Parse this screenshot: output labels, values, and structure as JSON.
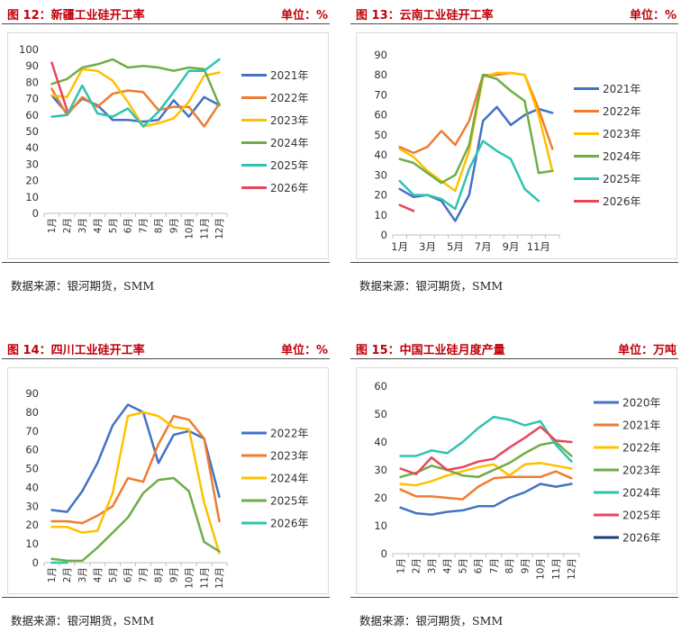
{
  "source_text": "数据来源：银河期货，SMM",
  "chart_data": [
    {
      "type": "line",
      "title": "图 12：新疆工业硅开工率",
      "unit": "单位：%",
      "categories": [
        "1月",
        "2月",
        "3月",
        "4月",
        "5月",
        "6月",
        "7月",
        "8月",
        "9月",
        "10月",
        "11月",
        "12月"
      ],
      "ylim": [
        0,
        100
      ],
      "yticks": [
        0,
        10,
        20,
        30,
        40,
        50,
        60,
        70,
        80,
        90,
        100
      ],
      "xtick_rotate": true,
      "legend_position": "right",
      "series": [
        {
          "name": "2021年",
          "color": "#4472c4",
          "values": [
            72,
            61,
            70,
            66,
            57,
            57,
            56,
            57,
            69,
            59,
            71,
            66
          ]
        },
        {
          "name": "2022年",
          "color": "#ed7d31",
          "values": [
            76,
            60,
            71,
            65,
            73,
            75,
            74,
            63,
            65,
            65,
            53,
            67
          ]
        },
        {
          "name": "2023年",
          "color": "#ffc000",
          "values": [
            72,
            71,
            88,
            87,
            81,
            68,
            53,
            55,
            58,
            68,
            84,
            86
          ]
        },
        {
          "name": "2024年",
          "color": "#70ad47",
          "values": [
            79,
            82,
            89,
            91,
            94,
            89,
            90,
            89,
            87,
            89,
            88,
            66
          ]
        },
        {
          "name": "2025年",
          "color": "#2ec4b0",
          "values": [
            59,
            60,
            78,
            61,
            59,
            64,
            53,
            62,
            74,
            87,
            87,
            94
          ]
        },
        {
          "name": "2026年",
          "color": "#e8475b",
          "values": [
            92,
            63,
            null,
            null,
            null,
            null,
            null,
            null,
            null,
            null,
            null,
            null
          ]
        }
      ]
    },
    {
      "type": "line",
      "title": "图 13：云南工业硅开工率",
      "unit": "单位：%",
      "categories": [
        "1月",
        "2月",
        "3月",
        "4月",
        "5月",
        "6月",
        "7月",
        "8月",
        "9月",
        "10月",
        "11月",
        "12月"
      ],
      "xtick_labels": [
        "1月",
        "",
        "3月",
        "",
        "5月",
        "",
        "7月",
        "",
        "9月",
        "",
        "11月",
        ""
      ],
      "ylim": [
        0,
        90
      ],
      "yticks": [
        0,
        10,
        20,
        30,
        40,
        50,
        60,
        70,
        80,
        90
      ],
      "xtick_rotate": false,
      "legend_position": "right",
      "series": [
        {
          "name": "2021年",
          "color": "#4472c4",
          "values": [
            23,
            19,
            20,
            17,
            7,
            20,
            57,
            64,
            55,
            60,
            63,
            61
          ]
        },
        {
          "name": "2022年",
          "color": "#ed7d31",
          "values": [
            44,
            41,
            44,
            52,
            45,
            57,
            80,
            80,
            81,
            80,
            63,
            43
          ]
        },
        {
          "name": "2023年",
          "color": "#ffc000",
          "values": [
            43,
            39,
            32,
            27,
            22,
            42,
            79,
            81,
            81,
            80,
            60,
            32
          ]
        },
        {
          "name": "2024年",
          "color": "#70ad47",
          "values": [
            38,
            36,
            31,
            26,
            30,
            45,
            80,
            78,
            72,
            67,
            31,
            32
          ]
        },
        {
          "name": "2025年",
          "color": "#2ec4b0",
          "values": [
            27,
            20,
            20,
            18,
            13,
            33,
            47,
            42,
            38,
            23,
            17,
            null
          ]
        },
        {
          "name": "2026年",
          "color": "#e8475b",
          "values": [
            15,
            12,
            null,
            null,
            null,
            null,
            null,
            null,
            null,
            null,
            null,
            null
          ]
        }
      ]
    },
    {
      "type": "line",
      "title": "图 14：四川工业硅开工率",
      "unit": "单位：%",
      "categories": [
        "1月",
        "2月",
        "3月",
        "4月",
        "5月",
        "6月",
        "7月",
        "8月",
        "9月",
        "10月",
        "11月",
        "12月"
      ],
      "ylim": [
        0,
        90
      ],
      "yticks": [
        0,
        10,
        20,
        30,
        40,
        50,
        60,
        70,
        80,
        90
      ],
      "xtick_rotate": true,
      "legend_position": "right",
      "series": [
        {
          "name": "2022年",
          "color": "#4472c4",
          "values": [
            28,
            27,
            38,
            53,
            73,
            84,
            80,
            53,
            68,
            70,
            66,
            35
          ]
        },
        {
          "name": "2023年",
          "color": "#ed7d31",
          "values": [
            22,
            22,
            21,
            25,
            30,
            45,
            43,
            63,
            78,
            76,
            66,
            22
          ]
        },
        {
          "name": "2024年",
          "color": "#ffc000",
          "values": [
            19,
            19,
            16,
            17,
            37,
            78,
            80,
            78,
            72,
            71,
            32,
            5
          ]
        },
        {
          "name": "2025年",
          "color": "#70ad47",
          "values": [
            2,
            1,
            1,
            8,
            16,
            24,
            37,
            44,
            45,
            38,
            11,
            6
          ]
        },
        {
          "name": "2026年",
          "color": "#2ec4b0",
          "values": [
            0,
            0,
            null,
            null,
            null,
            null,
            null,
            null,
            null,
            null,
            null,
            null
          ]
        }
      ]
    },
    {
      "type": "line",
      "title": "图 15：中国工业硅月度产量",
      "unit": "单位：万吨",
      "categories": [
        "1月",
        "2月",
        "3月",
        "4月",
        "5月",
        "6月",
        "7月",
        "8月",
        "9月",
        "10月",
        "11月",
        "12月"
      ],
      "ylim": [
        0,
        60
      ],
      "yticks": [
        0,
        10,
        20,
        30,
        40,
        50,
        60
      ],
      "xtick_rotate": true,
      "legend_position": "right",
      "series": [
        {
          "name": "2020年",
          "color": "#4472c4",
          "values": [
            16.5,
            14.5,
            14,
            15,
            15.5,
            17,
            17,
            20,
            22,
            25,
            24,
            25
          ]
        },
        {
          "name": "2021年",
          "color": "#ed7d31",
          "values": [
            23,
            20.5,
            20.5,
            20,
            19.5,
            24,
            27,
            27.5,
            27.5,
            27.5,
            29.5,
            27
          ]
        },
        {
          "name": "2022年",
          "color": "#ffc000",
          "values": [
            25,
            24.5,
            26,
            28,
            29.5,
            31,
            32,
            28,
            32,
            32.5,
            31.5,
            30.5
          ]
        },
        {
          "name": "2023年",
          "color": "#70ad47",
          "values": [
            27.5,
            29,
            31.5,
            30,
            28,
            27.5,
            30,
            32.5,
            36,
            39,
            40,
            35
          ]
        },
        {
          "name": "2024年",
          "color": "#2ec4b0",
          "values": [
            35,
            35,
            37,
            36,
            40,
            45,
            49,
            48,
            46,
            47.5,
            39,
            33
          ]
        },
        {
          "name": "2025年",
          "color": "#e8475b",
          "values": [
            30.5,
            28.5,
            34.5,
            30,
            31,
            33,
            34,
            38,
            41.5,
            45.5,
            40.5,
            40
          ]
        },
        {
          "name": "2026年",
          "color": "#1f3d7a",
          "values": [
            null,
            null,
            null,
            null,
            null,
            null,
            null,
            null,
            null,
            null,
            null,
            null
          ]
        }
      ]
    }
  ]
}
